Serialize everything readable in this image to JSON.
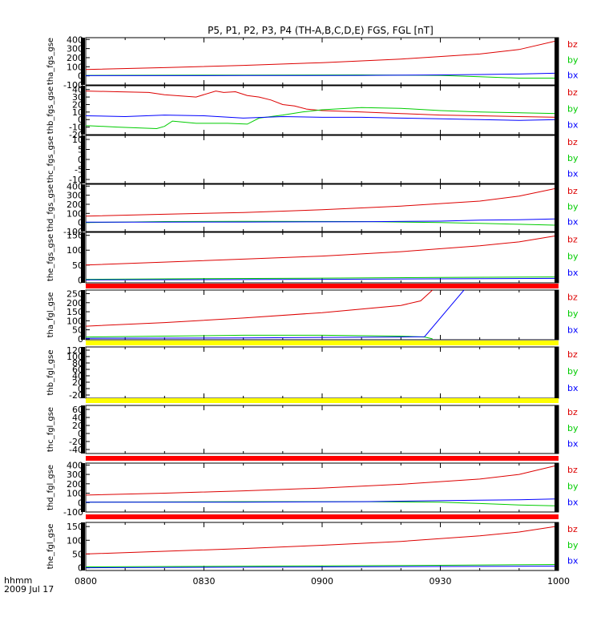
{
  "title": "P5, P1, P2, P3, P4 (TH-A,B,C,D,E) FGS, FGL [nT]",
  "footer": {
    "time_label": "hhmm",
    "date_label": "2009 Jul 17"
  },
  "colors": {
    "bx": "#0000ff",
    "by": "#00cc00",
    "bz": "#dd0000",
    "bar_red": "#ff0000",
    "bar_yellow": "#ffff00"
  },
  "chart_data": {
    "type": "line",
    "x_ticks": [
      "0800",
      "0830",
      "0900",
      "0930",
      "1000"
    ],
    "x_range": [
      0,
      120
    ],
    "panels": [
      {
        "label": "tha_fgs_gse",
        "ylim": [
          -100,
          420
        ],
        "yticks": [
          "400",
          "300",
          "200",
          "100",
          "0",
          "-100"
        ],
        "ytick_values": [
          400,
          300,
          200,
          100,
          0,
          -100
        ],
        "series": [
          {
            "name": "bz",
            "color": "#dd0000",
            "x": [
              0,
              20,
              40,
              60,
              80,
              100,
              110,
              120
            ],
            "values": [
              70,
              90,
              115,
              145,
              185,
              240,
              290,
              390
            ]
          },
          {
            "name": "by",
            "color": "#00cc00",
            "x": [
              0,
              40,
              70,
              90,
              100,
              110,
              120
            ],
            "values": [
              5,
              8,
              10,
              5,
              -10,
              -25,
              -25
            ]
          },
          {
            "name": "bx",
            "color": "#0000ff",
            "x": [
              0,
              40,
              70,
              90,
              100,
              110,
              120
            ],
            "values": [
              2,
              3,
              5,
              10,
              15,
              20,
              30
            ]
          }
        ]
      },
      {
        "label": "thb_fgs_gse",
        "ylim": [
          -20,
          45
        ],
        "yticks": [
          "40",
          "30",
          "20",
          "10",
          "0",
          "-10",
          "-20"
        ],
        "ytick_values": [
          40,
          30,
          20,
          10,
          0,
          -10,
          -20
        ],
        "series": [
          {
            "name": "bz",
            "color": "#dd0000",
            "x": [
              0,
              8,
              16,
              20,
              28,
              33,
              35,
              38,
              41,
              44,
              47,
              50,
              53,
              56,
              60,
              70,
              80,
              90,
              100,
              110,
              120
            ],
            "values": [
              38,
              37,
              36,
              33,
              30,
              38,
              36,
              37,
              32,
              30,
              26,
              20,
              18,
              14,
              12,
              10,
              8,
              6,
              5,
              4,
              3
            ]
          },
          {
            "name": "by",
            "color": "#00cc00",
            "x": [
              0,
              8,
              18,
              20,
              22,
              28,
              36,
              41,
              44,
              50,
              55,
              60,
              70,
              80,
              90,
              100,
              110,
              120
            ],
            "values": [
              -8,
              -10,
              -12,
              -9,
              -2,
              -5,
              -5,
              -6,
              2,
              6,
              10,
              13,
              16,
              15,
              12,
              10,
              9,
              8
            ]
          },
          {
            "name": "bx",
            "color": "#0000ff",
            "x": [
              0,
              10,
              20,
              30,
              40,
              50,
              60,
              70,
              80,
              90,
              100,
              110,
              120
            ],
            "values": [
              5,
              4,
              6,
              5,
              2,
              4,
              3,
              3,
              2,
              1,
              0,
              -1,
              0
            ]
          }
        ]
      },
      {
        "label": "thc_fgs_gse",
        "ylim": [
          -12,
          12
        ],
        "yticks": [
          "10",
          "5",
          "0",
          "-5",
          "-10"
        ],
        "ytick_values": [
          10,
          5,
          0,
          -5,
          -10
        ],
        "series": []
      },
      {
        "label": "thd_fgs_gse",
        "ylim": [
          -100,
          420
        ],
        "yticks": [
          "400",
          "300",
          "200",
          "100",
          "0",
          "-100"
        ],
        "ytick_values": [
          400,
          300,
          200,
          100,
          0,
          -100
        ],
        "series": [
          {
            "name": "bz",
            "color": "#dd0000",
            "x": [
              0,
              20,
              40,
              60,
              80,
              100,
              110,
              120
            ],
            "values": [
              70,
              90,
              110,
              140,
              180,
              235,
              290,
              380
            ]
          },
          {
            "name": "by",
            "color": "#00cc00",
            "x": [
              0,
              20,
              40,
              70,
              90,
              100,
              110,
              120
            ],
            "values": [
              0,
              10,
              12,
              10,
              0,
              -10,
              -20,
              -30
            ]
          },
          {
            "name": "bx",
            "color": "#0000ff",
            "x": [
              0,
              40,
              70,
              90,
              100,
              110,
              120
            ],
            "values": [
              3,
              5,
              8,
              15,
              25,
              30,
              40
            ]
          }
        ]
      },
      {
        "label": "the_fgs_gse",
        "ylim": [
          -10,
          160
        ],
        "yticks": [
          "150",
          "100",
          "50",
          "0"
        ],
        "ytick_values": [
          150,
          100,
          50,
          0
        ],
        "series": [
          {
            "name": "bz",
            "color": "#dd0000",
            "x": [
              0,
              20,
              40,
              60,
              80,
              100,
              110,
              120
            ],
            "values": [
              50,
              60,
              70,
              80,
              95,
              115,
              128,
              150
            ]
          },
          {
            "name": "by",
            "color": "#00cc00",
            "x": [
              0,
              30,
              60,
              90,
              120
            ],
            "values": [
              2,
              4,
              6,
              8,
              10
            ]
          },
          {
            "name": "bx",
            "color": "#0000ff",
            "x": [
              0,
              60,
              120
            ],
            "values": [
              0,
              2,
              5
            ]
          }
        ]
      },
      {
        "label": "tha_fgl_gse",
        "ylim": [
          -5,
          270
        ],
        "yticks": [
          "250",
          "200",
          "150",
          "100",
          "50",
          "0"
        ],
        "ytick_values": [
          250,
          200,
          150,
          100,
          50,
          0
        ],
        "series": [
          {
            "name": "bz",
            "color": "#dd0000",
            "x": [
              0,
              20,
              40,
              60,
              80,
              85,
              88
            ],
            "values": [
              70,
              90,
              115,
              145,
              185,
              210,
              270
            ]
          },
          {
            "name": "by",
            "color": "#00cc00",
            "x": [
              0,
              20,
              40,
              60,
              80,
              86,
              88
            ],
            "values": [
              10,
              15,
              20,
              20,
              15,
              10,
              0
            ]
          },
          {
            "name": "bx",
            "color": "#0000ff",
            "x": [
              0,
              40,
              60,
              80,
              86,
              96
            ],
            "values": [
              3,
              5,
              8,
              10,
              12,
              270
            ]
          }
        ]
      },
      {
        "label": "thb_fgl_gse",
        "ylim": [
          -30,
          130
        ],
        "yticks": [
          "120",
          "100",
          "80",
          "60",
          "40",
          "20",
          "0",
          "-20"
        ],
        "ytick_values": [
          120,
          100,
          80,
          60,
          40,
          20,
          0,
          -20
        ],
        "series": []
      },
      {
        "label": "thc_fgl_gse",
        "ylim": [
          -50,
          70
        ],
        "yticks": [
          "60",
          "40",
          "20",
          "0",
          "-20",
          "-40"
        ],
        "ytick_values": [
          60,
          40,
          20,
          0,
          -20,
          -40
        ],
        "series": []
      },
      {
        "label": "thd_fgl_gse",
        "ylim": [
          -100,
          420
        ],
        "yticks": [
          "400",
          "300",
          "200",
          "100",
          "0",
          "-100"
        ],
        "ytick_values": [
          400,
          300,
          200,
          100,
          0,
          -100
        ],
        "series": [
          {
            "name": "bz",
            "color": "#dd0000",
            "x": [
              0,
              20,
              40,
              60,
              80,
              100,
              110,
              120
            ],
            "values": [
              80,
              100,
              125,
              155,
              195,
              250,
              300,
              400
            ]
          },
          {
            "name": "by",
            "color": "#00cc00",
            "x": [
              0,
              40,
              70,
              90,
              100,
              110,
              120
            ],
            "values": [
              5,
              10,
              10,
              5,
              -10,
              -25,
              -35
            ]
          },
          {
            "name": "bx",
            "color": "#0000ff",
            "x": [
              0,
              40,
              70,
              90,
              100,
              110,
              120
            ],
            "values": [
              5,
              5,
              10,
              20,
              25,
              30,
              40
            ]
          }
        ]
      },
      {
        "label": "the_fgl_gse",
        "ylim": [
          -10,
          165
        ],
        "yticks": [
          "150",
          "100",
          "50",
          "0"
        ],
        "ytick_values": [
          150,
          100,
          50,
          0
        ],
        "series": [
          {
            "name": "bz",
            "color": "#dd0000",
            "x": [
              0,
              20,
              40,
              60,
              80,
              100,
              110,
              120
            ],
            "values": [
              50,
              60,
              70,
              82,
              96,
              116,
              130,
              152
            ]
          },
          {
            "name": "by",
            "color": "#00cc00",
            "x": [
              0,
              30,
              60,
              90,
              120
            ],
            "values": [
              3,
              5,
              7,
              9,
              12
            ]
          },
          {
            "name": "bx",
            "color": "#0000ff",
            "x": [
              0,
              60,
              120
            ],
            "values": [
              0,
              3,
              6
            ]
          }
        ]
      }
    ]
  }
}
